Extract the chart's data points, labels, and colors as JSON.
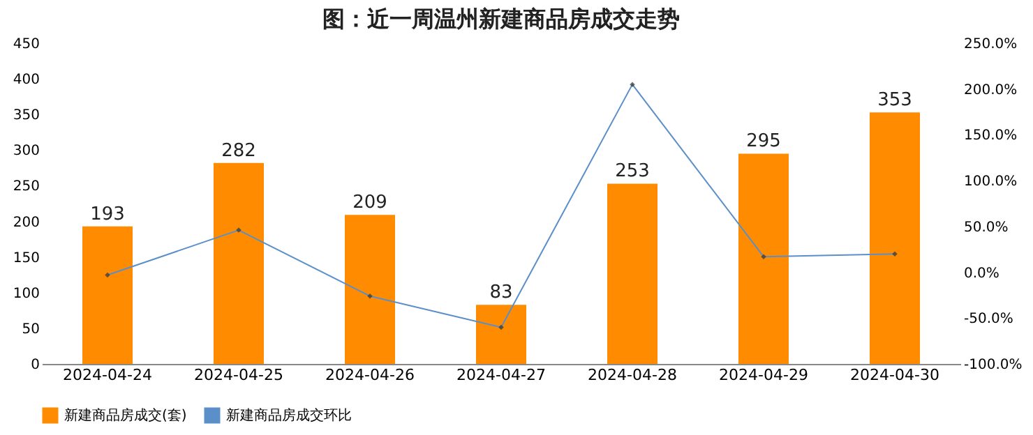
{
  "chart_data": {
    "type": "bar",
    "title": "图：近一周温州新建商品房成交走势",
    "categories": [
      "2024-04-24",
      "2024-04-25",
      "2024-04-26",
      "2024-04-27",
      "2024-04-28",
      "2024-04-29",
      "2024-04-30"
    ],
    "series": [
      {
        "name": "新建商品房成交(套)",
        "color": "#ff8c00",
        "values": [
          193,
          282,
          209,
          83,
          253,
          295,
          353
        ],
        "value_labels": [
          "193",
          "282",
          "209",
          "83",
          "253",
          "295",
          "353"
        ]
      },
      {
        "name": "新建商品房成交环比",
        "type": "line",
        "axis": "y2",
        "color": "#5b8fc9",
        "marker": "diamond",
        "values": [
          -3,
          46,
          -26,
          -60,
          205,
          17,
          20
        ]
      }
    ],
    "ylim": [
      0,
      450
    ],
    "yticks": [
      0,
      50,
      100,
      150,
      200,
      250,
      300,
      350,
      400,
      450
    ],
    "y2lim": [
      -100,
      250
    ],
    "y2ticks": [
      {
        "value": -100,
        "label": "-100.0%"
      },
      {
        "value": -50,
        "label": "-50.0%"
      },
      {
        "value": 0,
        "label": "0.0%"
      },
      {
        "value": 50,
        "label": "50.0%"
      },
      {
        "value": 100,
        "label": "100.0%"
      },
      {
        "value": 150,
        "label": "150.0%"
      },
      {
        "value": 200,
        "label": "200.0%"
      },
      {
        "value": 250,
        "label": "250.0%"
      }
    ],
    "grid": false,
    "legend": "bottom"
  }
}
